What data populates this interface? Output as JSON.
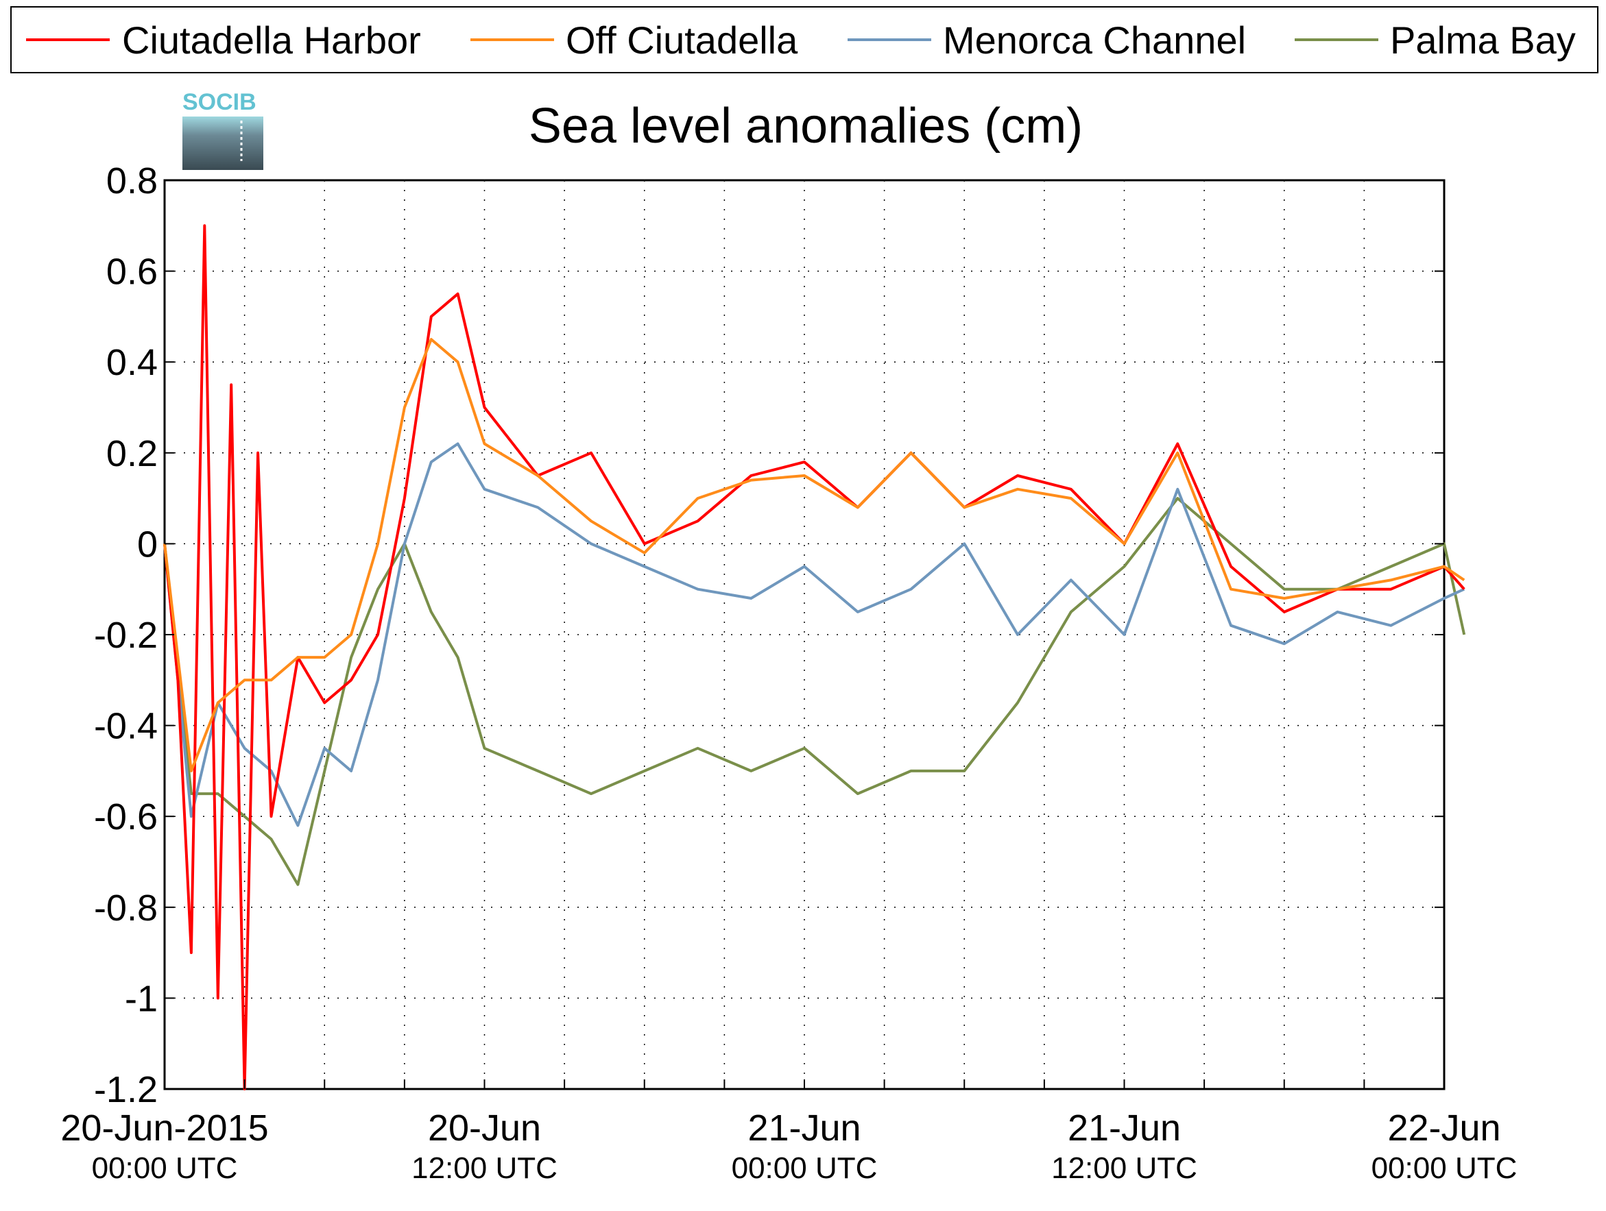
{
  "logo": {
    "text": "SOCIB"
  },
  "colors": {
    "ciutadella_harbor": "#ff0000",
    "off_ciutadella": "#ff8c1a",
    "menorca_channel": "#6f97bd",
    "palma_bay": "#7a8f4a",
    "logo_accent": "#63c2d2"
  },
  "chart_data": {
    "type": "line",
    "title": "Sea level anomalies (cm)",
    "xlabel": "",
    "ylabel": "",
    "ylim": [
      -1.2,
      0.8
    ],
    "xlim": [
      "2015-06-20T00:00",
      "2015-06-22T00:00"
    ],
    "yticks": [
      "0.8",
      "0.6",
      "0.4",
      "0.2",
      "0",
      "-0.2",
      "-0.4",
      "-0.6",
      "-0.8",
      "-1",
      "-1.2"
    ],
    "xticks": [
      {
        "label": "20-Jun-2015",
        "sub": "00:00 UTC"
      },
      {
        "label": "20-Jun",
        "sub": "12:00 UTC"
      },
      {
        "label": "21-Jun",
        "sub": "00:00 UTC"
      },
      {
        "label": "21-Jun",
        "sub": "12:00 UTC"
      },
      {
        "label": "22-Jun",
        "sub": "00:00 UTC"
      }
    ],
    "grid": true,
    "legend_position": "top",
    "series": [
      {
        "name": "Ciutadella Harbor",
        "x": [
          "2015-06-20T00:00",
          "2015-06-20T00:30",
          "2015-06-20T01:00",
          "2015-06-20T01:30",
          "2015-06-20T02:00",
          "2015-06-20T02:30",
          "2015-06-20T03:00",
          "2015-06-20T03:30",
          "2015-06-20T04:00",
          "2015-06-20T05:00",
          "2015-06-20T06:00",
          "2015-06-20T07:00",
          "2015-06-20T08:00",
          "2015-06-20T09:00",
          "2015-06-20T10:00",
          "2015-06-20T11:00",
          "2015-06-20T12:00",
          "2015-06-20T14:00",
          "2015-06-20T16:00",
          "2015-06-20T18:00",
          "2015-06-20T20:00",
          "2015-06-20T22:00",
          "2015-06-21T00:00",
          "2015-06-21T02:00",
          "2015-06-21T04:00",
          "2015-06-21T06:00",
          "2015-06-21T08:00",
          "2015-06-21T10:00",
          "2015-06-21T12:00",
          "2015-06-21T14:00",
          "2015-06-21T16:00",
          "2015-06-21T18:00",
          "2015-06-21T20:00",
          "2015-06-21T22:00",
          "2015-06-22T00:00",
          "2015-06-22T00:45"
        ],
        "values": [
          0.0,
          -0.3,
          -0.9,
          0.7,
          -1.0,
          0.35,
          -1.2,
          0.2,
          -0.6,
          -0.25,
          -0.35,
          -0.3,
          -0.2,
          0.1,
          0.5,
          0.55,
          0.3,
          0.15,
          0.2,
          0.0,
          0.05,
          0.15,
          0.18,
          0.08,
          0.2,
          0.08,
          0.15,
          0.12,
          0.0,
          0.22,
          -0.05,
          -0.15,
          -0.1,
          -0.1,
          -0.05,
          -0.1
        ]
      },
      {
        "name": "Off Ciutadella",
        "x": [
          "2015-06-20T00:00",
          "2015-06-20T01:00",
          "2015-06-20T02:00",
          "2015-06-20T03:00",
          "2015-06-20T04:00",
          "2015-06-20T05:00",
          "2015-06-20T06:00",
          "2015-06-20T07:00",
          "2015-06-20T08:00",
          "2015-06-20T09:00",
          "2015-06-20T10:00",
          "2015-06-20T11:00",
          "2015-06-20T12:00",
          "2015-06-20T14:00",
          "2015-06-20T16:00",
          "2015-06-20T18:00",
          "2015-06-20T20:00",
          "2015-06-20T22:00",
          "2015-06-21T00:00",
          "2015-06-21T02:00",
          "2015-06-21T04:00",
          "2015-06-21T06:00",
          "2015-06-21T08:00",
          "2015-06-21T10:00",
          "2015-06-21T12:00",
          "2015-06-21T14:00",
          "2015-06-21T16:00",
          "2015-06-21T18:00",
          "2015-06-21T20:00",
          "2015-06-21T22:00",
          "2015-06-22T00:00",
          "2015-06-22T00:45"
        ],
        "values": [
          0.0,
          -0.5,
          -0.35,
          -0.3,
          -0.3,
          -0.25,
          -0.25,
          -0.2,
          0.0,
          0.3,
          0.45,
          0.4,
          0.22,
          0.15,
          0.05,
          -0.02,
          0.1,
          0.14,
          0.15,
          0.08,
          0.2,
          0.08,
          0.12,
          0.1,
          0.0,
          0.2,
          -0.1,
          -0.12,
          -0.1,
          -0.08,
          -0.05,
          -0.08
        ]
      },
      {
        "name": "Menorca Channel",
        "x": [
          "2015-06-20T00:00",
          "2015-06-20T01:00",
          "2015-06-20T02:00",
          "2015-06-20T03:00",
          "2015-06-20T04:00",
          "2015-06-20T05:00",
          "2015-06-20T06:00",
          "2015-06-20T07:00",
          "2015-06-20T08:00",
          "2015-06-20T09:00",
          "2015-06-20T10:00",
          "2015-06-20T11:00",
          "2015-06-20T12:00",
          "2015-06-20T14:00",
          "2015-06-20T16:00",
          "2015-06-20T18:00",
          "2015-06-20T20:00",
          "2015-06-20T22:00",
          "2015-06-21T00:00",
          "2015-06-21T02:00",
          "2015-06-21T04:00",
          "2015-06-21T06:00",
          "2015-06-21T08:00",
          "2015-06-21T10:00",
          "2015-06-21T12:00",
          "2015-06-21T14:00",
          "2015-06-21T16:00",
          "2015-06-21T18:00",
          "2015-06-21T20:00",
          "2015-06-21T22:00",
          "2015-06-22T00:00",
          "2015-06-22T00:45"
        ],
        "values": [
          0.0,
          -0.6,
          -0.35,
          -0.45,
          -0.5,
          -0.62,
          -0.45,
          -0.5,
          -0.3,
          0.0,
          0.18,
          0.22,
          0.12,
          0.08,
          0.0,
          -0.05,
          -0.1,
          -0.12,
          -0.05,
          -0.15,
          -0.1,
          0.0,
          -0.2,
          -0.08,
          -0.2,
          0.12,
          -0.18,
          -0.22,
          -0.15,
          -0.18,
          -0.12,
          -0.1
        ]
      },
      {
        "name": "Palma Bay",
        "x": [
          "2015-06-20T00:00",
          "2015-06-20T01:00",
          "2015-06-20T02:00",
          "2015-06-20T03:00",
          "2015-06-20T04:00",
          "2015-06-20T05:00",
          "2015-06-20T06:00",
          "2015-06-20T07:00",
          "2015-06-20T08:00",
          "2015-06-20T09:00",
          "2015-06-20T10:00",
          "2015-06-20T11:00",
          "2015-06-20T12:00",
          "2015-06-20T14:00",
          "2015-06-20T16:00",
          "2015-06-20T18:00",
          "2015-06-20T20:00",
          "2015-06-20T22:00",
          "2015-06-21T00:00",
          "2015-06-21T02:00",
          "2015-06-21T04:00",
          "2015-06-21T06:00",
          "2015-06-21T08:00",
          "2015-06-21T10:00",
          "2015-06-21T12:00",
          "2015-06-21T14:00",
          "2015-06-21T16:00",
          "2015-06-21T18:00",
          "2015-06-21T20:00",
          "2015-06-21T22:00",
          "2015-06-22T00:00",
          "2015-06-22T00:45"
        ],
        "values": [
          0.0,
          -0.55,
          -0.55,
          -0.6,
          -0.65,
          -0.75,
          -0.5,
          -0.25,
          -0.1,
          0.0,
          -0.15,
          -0.25,
          -0.45,
          -0.5,
          -0.55,
          -0.5,
          -0.45,
          -0.5,
          -0.45,
          -0.55,
          -0.5,
          -0.5,
          -0.35,
          -0.15,
          -0.05,
          0.1,
          0.0,
          -0.1,
          -0.1,
          -0.05,
          0.0,
          -0.2
        ]
      }
    ]
  }
}
